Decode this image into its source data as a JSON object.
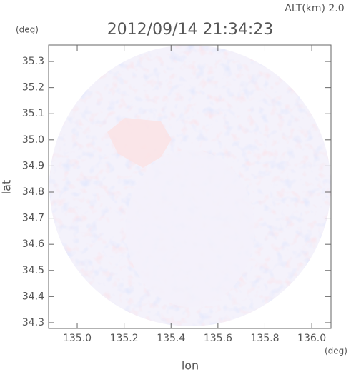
{
  "chart_data": {
    "type": "radar-map",
    "title": "2012/09/14 21:34:23",
    "subtitle": "ALT(km) 2.0",
    "x_label": "lon",
    "y_label": "lat",
    "x_unit": "(deg)",
    "y_unit": "(deg)",
    "xlim": [
      134.878,
      136.082
    ],
    "ylim": [
      34.278,
      35.363
    ],
    "xticks": [
      {
        "value": 135,
        "label": "135.0"
      },
      135.2,
      135.4,
      135.6,
      135.8,
      {
        "value": 136,
        "label": "136.0"
      }
    ],
    "yticks": [
      34.3,
      34.4,
      34.5,
      34.6,
      34.7,
      34.8,
      34.9,
      {
        "value": 35,
        "label": "35.0"
      },
      35.1,
      35.2,
      35.3
    ]
  }
}
